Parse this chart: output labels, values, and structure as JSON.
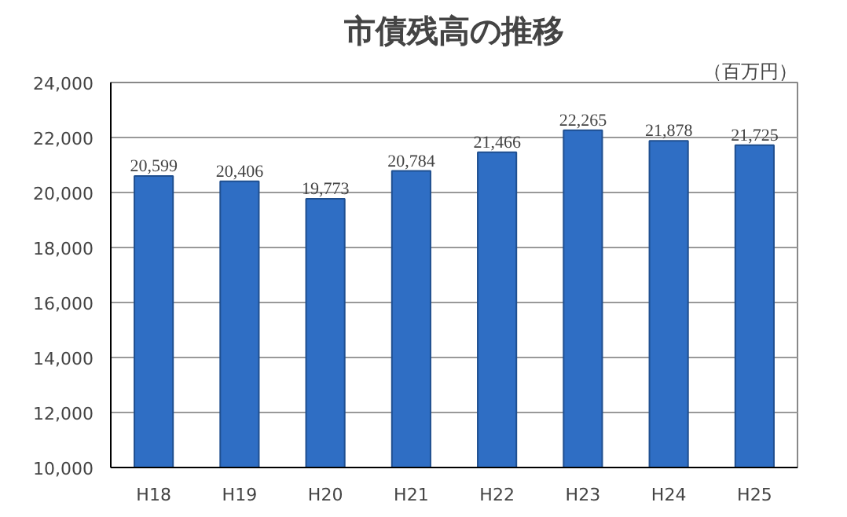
{
  "chart_data": {
    "type": "bar",
    "title": "市債残高の推移",
    "annotations": [
      "（百万円）"
    ],
    "categories": [
      "H18",
      "H19",
      "H20",
      "H21",
      "H22",
      "H23",
      "H24",
      "H25"
    ],
    "values": [
      20599,
      20406,
      19773,
      20784,
      21466,
      22265,
      21878,
      21725
    ],
    "color": "#2f6ec4",
    "value_labels": [
      "20,599",
      "20,406",
      "19,773",
      "20,784",
      "21,466",
      "22,265",
      "21,878",
      "21,725"
    ],
    "ylim": [
      10000,
      24000
    ],
    "yticks": [
      {
        "value": 10000,
        "label": "10,000"
      },
      {
        "value": 12000,
        "label": "12,000"
      },
      {
        "value": 14000,
        "label": "14,000"
      },
      {
        "value": 16000,
        "label": "16,000"
      },
      {
        "value": 18000,
        "label": "18,000"
      },
      {
        "value": 20000,
        "label": "20,000"
      },
      {
        "value": 22000,
        "label": "22,000"
      },
      {
        "value": 24000,
        "label": "24,000"
      }
    ],
    "grid": "y"
  }
}
